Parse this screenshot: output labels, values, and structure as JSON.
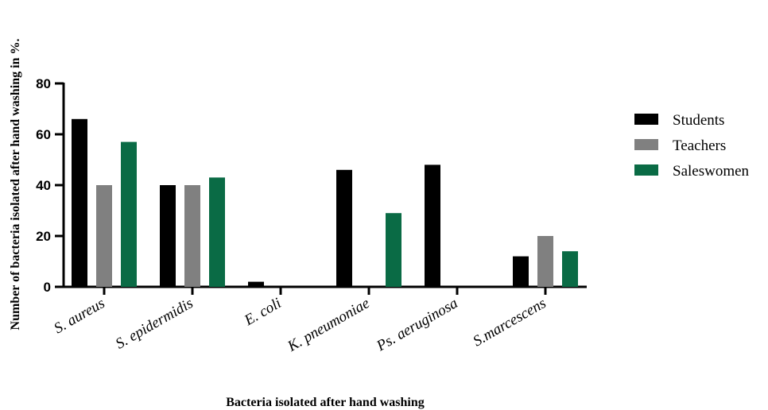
{
  "chart_data": {
    "type": "bar",
    "categories": [
      "S. aureus",
      "S. epidermidis",
      "E. coli",
      "K. pneumoniae",
      "Ps. aeruginosa",
      "S.marcescens"
    ],
    "series": [
      {
        "name": "Students",
        "values": [
          66,
          40,
          2,
          46,
          48,
          12
        ],
        "color": "#000000"
      },
      {
        "name": "Teachers",
        "values": [
          40,
          40,
          0,
          0,
          0,
          20
        ],
        "color": "#808080"
      },
      {
        "name": "Saleswomen",
        "values": [
          57,
          43,
          0,
          29,
          0,
          14
        ],
        "color": "#0a6b45"
      }
    ],
    "xlabel": "Bacteria isolated after hand washing",
    "ylabel": "Number of bacteria isolated after hand washing in %.",
    "ylim": [
      0,
      80
    ],
    "yticks": [
      0,
      20,
      40,
      60,
      80
    ],
    "grid": false,
    "legend_position": "right"
  }
}
